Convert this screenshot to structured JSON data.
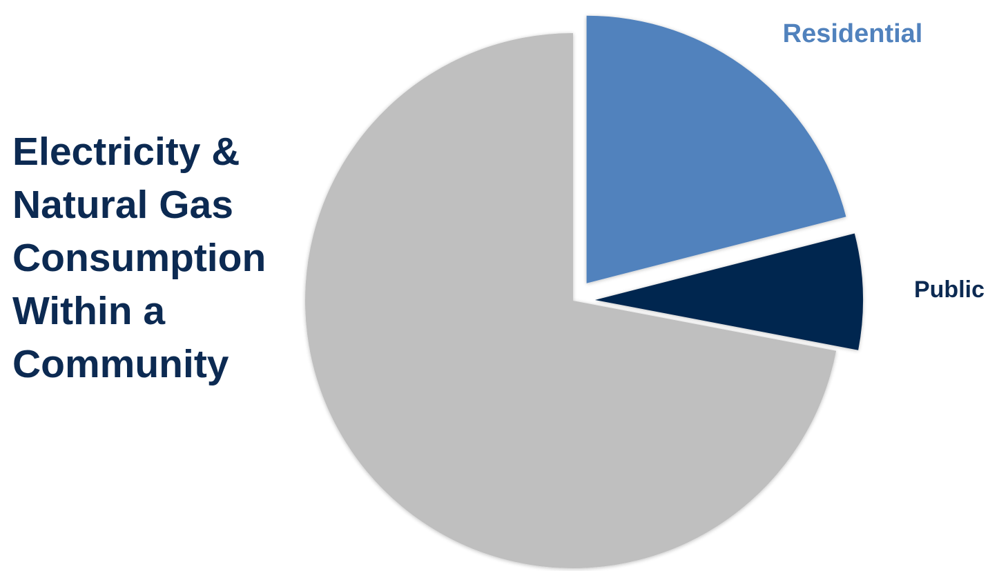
{
  "title_lines": [
    "Electricity &",
    "Natural Gas",
    "Consumption",
    "Within a",
    "Community"
  ],
  "chart_data": {
    "type": "pie",
    "title": "Electricity & Natural Gas Consumption Within a Community",
    "slices": [
      {
        "label": "Residential",
        "value": 21,
        "color": "#5182bd",
        "label_color": "#5182bd",
        "exploded": true
      },
      {
        "label": "Public",
        "value": 7,
        "color": "#01274f",
        "label_color": "#0c2a52",
        "exploded": true
      },
      {
        "label": "",
        "value": 72,
        "color": "#bfbfbf",
        "label_color": "#bfbfbf",
        "exploded": false
      }
    ],
    "start_angle_deg": 0,
    "direction": "clockwise",
    "legend": "none"
  }
}
